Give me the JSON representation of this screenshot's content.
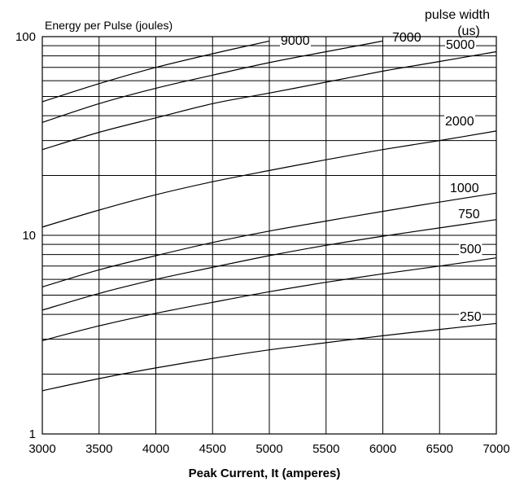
{
  "chart_data": {
    "type": "line",
    "ylabel": "Energy per Pulse (joules)",
    "xlabel": "Peak Current, It (amperes)",
    "legend_title_line1": "pulse width",
    "legend_title_line2": "(us)",
    "x_scale": "linear",
    "y_scale": "log",
    "xlim": [
      3000,
      7000
    ],
    "ylim": [
      1,
      100
    ],
    "grid": true,
    "x_ticks": [
      3000,
      3500,
      4000,
      4500,
      5000,
      5500,
      6000,
      6500,
      7000
    ],
    "x_tick_labels": [
      "3000",
      "3500",
      "4000",
      "4500",
      "5000",
      "5500",
      "6000",
      "6500",
      "7000"
    ],
    "y_tick_values": [
      1,
      10,
      100
    ],
    "y_tick_labels": [
      "1",
      "10",
      "100"
    ],
    "series": [
      {
        "name": "9000",
        "x": [
          3000,
          3500,
          4000,
          4500,
          5000
        ],
        "y": [
          47,
          58,
          70,
          82,
          95
        ]
      },
      {
        "name": "7000",
        "x": [
          3000,
          3500,
          4000,
          4500,
          5000,
          5500,
          6000
        ],
        "y": [
          37,
          46,
          55,
          64,
          74,
          84,
          95
        ]
      },
      {
        "name": "5000",
        "x": [
          3000,
          3500,
          4000,
          4500,
          5000,
          5500,
          6000,
          6500,
          7000
        ],
        "y": [
          27,
          33,
          39,
          46,
          52,
          59,
          67,
          75,
          84
        ]
      },
      {
        "name": "2000",
        "x": [
          3000,
          3500,
          4000,
          4500,
          5000,
          5500,
          6000,
          6500,
          7000
        ],
        "y": [
          11,
          13.4,
          16,
          18.6,
          21.2,
          24,
          27,
          30,
          33.5
        ]
      },
      {
        "name": "1000",
        "x": [
          3000,
          3500,
          4000,
          4500,
          5000,
          5500,
          6000,
          6500,
          7000
        ],
        "y": [
          5.5,
          6.7,
          7.9,
          9.2,
          10.5,
          11.8,
          13.2,
          14.7,
          16.3
        ]
      },
      {
        "name": "750",
        "x": [
          3000,
          3500,
          4000,
          4500,
          5000,
          5500,
          6000,
          6500,
          7000
        ],
        "y": [
          4.2,
          5.1,
          6.0,
          6.9,
          7.9,
          8.9,
          9.9,
          10.9,
          12.0
        ]
      },
      {
        "name": "500",
        "x": [
          3000,
          3500,
          4000,
          4500,
          5000,
          5500,
          6000,
          6500,
          7000
        ],
        "y": [
          2.95,
          3.5,
          4.05,
          4.6,
          5.2,
          5.8,
          6.4,
          7.0,
          7.7
        ]
      },
      {
        "name": "250",
        "x": [
          3000,
          3500,
          4000,
          4500,
          5000,
          5500,
          6000,
          6500,
          7000
        ],
        "y": [
          1.65,
          1.9,
          2.15,
          2.4,
          2.65,
          2.88,
          3.12,
          3.36,
          3.6
        ]
      }
    ]
  }
}
